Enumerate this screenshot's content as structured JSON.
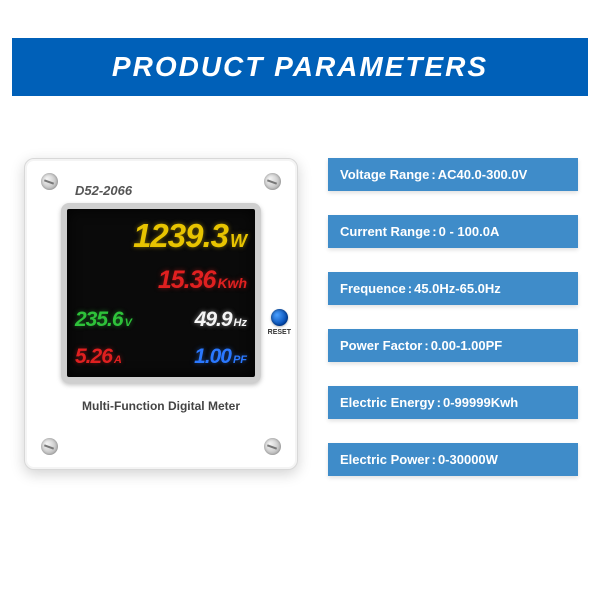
{
  "header": {
    "title": "PRODUCT PARAMETERS"
  },
  "colors": {
    "header_bg": "#0060b8",
    "param_bg": "#3f8cc9",
    "text_on_blue": "#ffffff",
    "lcd_bg": "#0a0a0a",
    "yellow": "#e8c400",
    "red": "#e02020",
    "green": "#2ec23a",
    "white": "#f5f5f5",
    "blue": "#2a78ff"
  },
  "device": {
    "model": "D52-2066",
    "subtitle": "Multi-Function Digital Meter",
    "reset_label": "RESET",
    "display": {
      "power": {
        "value": "1239.3",
        "unit": "W"
      },
      "energy": {
        "value": "15.36",
        "unit": "Kwh"
      },
      "voltage": {
        "value": "235.6",
        "unit": "V"
      },
      "frequency": {
        "value": "49.9",
        "unit": "Hz"
      },
      "current": {
        "value": "5.26",
        "unit": "A"
      },
      "pf": {
        "value": "1.00",
        "unit": "PF"
      }
    }
  },
  "params": [
    {
      "label": "Voltage Range",
      "sep": " :",
      "value": "AC40.0-300.0V"
    },
    {
      "label": "Current Range",
      "sep": " : ",
      "value": "0 - 100.0A"
    },
    {
      "label": "Frequence",
      "sep": ":",
      "value": "45.0Hz-65.0Hz"
    },
    {
      "label": "Power Factor",
      "sep": ":",
      "value": "0.00-1.00PF"
    },
    {
      "label": "Electric Energy",
      "sep": " :",
      "value": "0-99999Kwh"
    },
    {
      "label": "Electric Power",
      "sep": ": ",
      "value": "0-30000W"
    }
  ]
}
